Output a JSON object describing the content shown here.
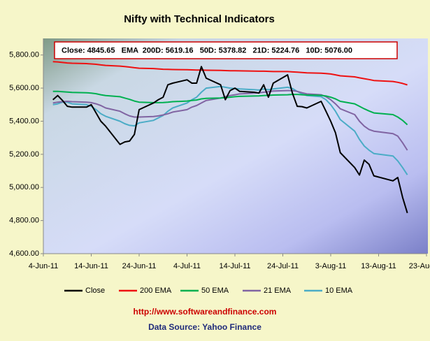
{
  "chart_data": {
    "type": "line",
    "title": "Nifty with Technical Indicators",
    "annotation": "Close: 4845.65   EMA  200D: 5619.16   50D: 5378.82   21D: 5224.76   10D: 5076.00",
    "footer_link": "http://www.softwareandfinance.com",
    "footer_source": "Data Source: Yahoo Finance",
    "x": [
      "6-Jun-11",
      "7-Jun-11",
      "8-Jun-11",
      "9-Jun-11",
      "10-Jun-11",
      "13-Jun-11",
      "14-Jun-11",
      "15-Jun-11",
      "16-Jun-11",
      "17-Jun-11",
      "20-Jun-11",
      "21-Jun-11",
      "22-Jun-11",
      "23-Jun-11",
      "24-Jun-11",
      "27-Jun-11",
      "28-Jun-11",
      "29-Jun-11",
      "30-Jun-11",
      "1-Jul-11",
      "4-Jul-11",
      "5-Jul-11",
      "6-Jul-11",
      "7-Jul-11",
      "8-Jul-11",
      "11-Jul-11",
      "12-Jul-11",
      "13-Jul-11",
      "14-Jul-11",
      "15-Jul-11",
      "18-Jul-11",
      "19-Jul-11",
      "20-Jul-11",
      "21-Jul-11",
      "22-Jul-11",
      "25-Jul-11",
      "26-Jul-11",
      "27-Jul-11",
      "28-Jul-11",
      "29-Jul-11",
      "1-Aug-11",
      "2-Aug-11",
      "3-Aug-11",
      "4-Aug-11",
      "5-Aug-11",
      "8-Aug-11",
      "9-Aug-11",
      "10-Aug-11",
      "11-Aug-11",
      "12-Aug-11",
      "16-Aug-11",
      "17-Aug-11",
      "18-Aug-11",
      "19-Aug-11"
    ],
    "xlim": [
      "4-Jun-11",
      "23-Aug-11"
    ],
    "xticks": [
      "4-Jun-11",
      "14-Jun-11",
      "24-Jun-11",
      "4-Jul-11",
      "14-Jul-11",
      "24-Jul-11",
      "3-Aug-11",
      "13-Aug-11",
      "23-Aug-11"
    ],
    "ylim": [
      4600,
      5900
    ],
    "yticks": [
      {
        "value": 4600,
        "label": "4,600.00"
      },
      {
        "value": 4800,
        "label": "4,800.00"
      },
      {
        "value": 5000,
        "label": "5,000.00"
      },
      {
        "value": 5200,
        "label": "5,200.00"
      },
      {
        "value": 5400,
        "label": "5,400.00"
      },
      {
        "value": 5600,
        "label": "5,600.00"
      },
      {
        "value": 5800,
        "label": "5,800.00"
      }
    ],
    "series": [
      {
        "name": "Close",
        "color": "#000000",
        "values": [
          5530,
          5555,
          5525,
          5490,
          5485,
          5485,
          5500,
          5450,
          5400,
          5370,
          5260,
          5275,
          5280,
          5320,
          5470,
          5510,
          5530,
          5545,
          5620,
          5630,
          5650,
          5630,
          5630,
          5730,
          5660,
          5620,
          5530,
          5585,
          5600,
          5580,
          5575,
          5570,
          5620,
          5545,
          5630,
          5680,
          5570,
          5490,
          5488,
          5480,
          5520,
          5460,
          5400,
          5330,
          5210,
          5120,
          5075,
          5165,
          5140,
          5070,
          5040,
          5060,
          4940,
          4845.65
        ]
      },
      {
        "name": "200 EMA",
        "color": "#ee1111",
        "values": [
          5760,
          5758,
          5755,
          5752,
          5750,
          5748,
          5746,
          5744,
          5740,
          5737,
          5733,
          5730,
          5727,
          5723,
          5720,
          5718,
          5716,
          5714,
          5713,
          5712,
          5711,
          5710,
          5709,
          5709,
          5708,
          5707,
          5706,
          5705,
          5705,
          5704,
          5703,
          5702,
          5702,
          5701,
          5700,
          5700,
          5698,
          5696,
          5694,
          5692,
          5690,
          5688,
          5685,
          5680,
          5674,
          5668,
          5662,
          5657,
          5652,
          5646,
          5640,
          5635,
          5628,
          5619.16
        ]
      },
      {
        "name": "50 EMA",
        "color": "#00b050",
        "values": [
          5580,
          5580,
          5578,
          5576,
          5574,
          5572,
          5570,
          5566,
          5560,
          5555,
          5548,
          5540,
          5532,
          5522,
          5515,
          5512,
          5512,
          5513,
          5515,
          5518,
          5522,
          5525,
          5528,
          5535,
          5538,
          5540,
          5542,
          5545,
          5548,
          5550,
          5552,
          5553,
          5555,
          5556,
          5558,
          5560,
          5562,
          5562,
          5560,
          5558,
          5556,
          5552,
          5545,
          5535,
          5520,
          5505,
          5490,
          5475,
          5462,
          5450,
          5440,
          5425,
          5405,
          5378.82
        ]
      },
      {
        "name": "21 EMA",
        "color": "#8064a2",
        "values": [
          5510,
          5515,
          5518,
          5520,
          5518,
          5515,
          5512,
          5505,
          5495,
          5480,
          5460,
          5445,
          5432,
          5425,
          5425,
          5428,
          5432,
          5438,
          5445,
          5455,
          5470,
          5485,
          5495,
          5510,
          5525,
          5540,
          5548,
          5555,
          5560,
          5565,
          5570,
          5572,
          5575,
          5578,
          5582,
          5585,
          5585,
          5580,
          5572,
          5565,
          5560,
          5548,
          5530,
          5505,
          5475,
          5440,
          5400,
          5370,
          5350,
          5340,
          5325,
          5310,
          5270,
          5224.76
        ]
      },
      {
        "name": "10 EMA",
        "color": "#4bacc6",
        "values": [
          5500,
          5505,
          5515,
          5515,
          5505,
          5500,
          5490,
          5470,
          5445,
          5430,
          5400,
          5385,
          5375,
          5372,
          5390,
          5405,
          5420,
          5435,
          5460,
          5480,
          5510,
          5530,
          5545,
          5575,
          5600,
          5610,
          5605,
          5600,
          5598,
          5595,
          5590,
          5588,
          5595,
          5590,
          5595,
          5605,
          5598,
          5580,
          5565,
          5555,
          5548,
          5530,
          5500,
          5460,
          5410,
          5340,
          5290,
          5250,
          5225,
          5205,
          5190,
          5160,
          5120,
          5076
        ]
      }
    ],
    "grid": false
  }
}
